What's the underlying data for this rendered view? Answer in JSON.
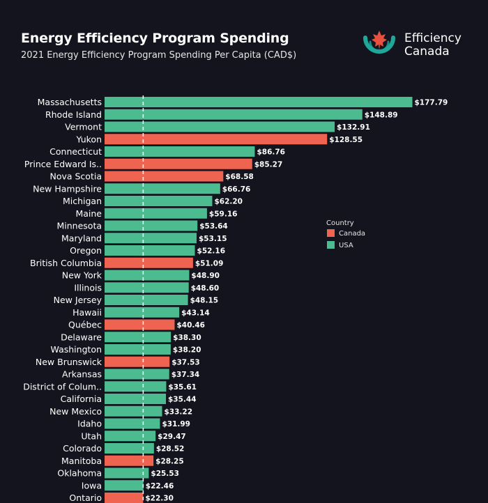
{
  "header": {
    "title": "Energy Efficiency Program Spending",
    "subtitle": "2021 Energy Efficiency Program Spending Per Capita (CAD$)"
  },
  "logo": {
    "line1": "Efficiency",
    "line2": "Canada",
    "colors": {
      "teal": "#1fa89a",
      "red": "#e8513e"
    }
  },
  "colors": {
    "Canada": "#ef6351",
    "USA": "#4cbb8f",
    "background": "#14141f",
    "reference_line": "#ffffff"
  },
  "chart_data": {
    "type": "bar",
    "orientation": "horizontal",
    "title": "Energy Efficiency Program Spending",
    "subtitle": "2021 Energy Efficiency Program Spending Per Capita (CAD$)",
    "xlim": [
      0,
      180
    ],
    "reference_line": 22.3,
    "legend": {
      "title": "Country",
      "placement": "right",
      "entries": [
        "Canada",
        "USA"
      ]
    },
    "value_prefix": "$",
    "categories": [
      "Massachusetts",
      "Rhode Island",
      "Vermont",
      "Yukon",
      "Connecticut",
      "Prince Edward Is..",
      "Nova Scotia",
      "New Hampshire",
      "Michigan",
      "Maine",
      "Minnesota",
      "Maryland",
      "Oregon",
      "British Columbia",
      "New York",
      "Illinois",
      "New Jersey",
      "Hawaii",
      "Québec",
      "Delaware",
      "Washington",
      "New Brunswick",
      "Arkansas",
      "District of Colum..",
      "California",
      "New Mexico",
      "Idaho",
      "Utah",
      "Colorado",
      "Manitoba",
      "Oklahoma",
      "Iowa",
      "Ontario"
    ],
    "values": [
      177.79,
      148.89,
      132.91,
      128.55,
      86.76,
      85.27,
      68.58,
      66.76,
      62.2,
      59.16,
      53.64,
      53.15,
      52.16,
      51.09,
      48.9,
      48.6,
      48.15,
      43.14,
      40.46,
      38.3,
      38.2,
      37.53,
      37.34,
      35.61,
      35.44,
      33.22,
      31.99,
      29.47,
      28.52,
      28.25,
      25.53,
      22.46,
      22.3
    ],
    "value_labels": [
      "$177.79",
      "$148.89",
      "$132.91",
      "$128.55",
      "$86.76",
      "$85.27",
      "$68.58",
      "$66.76",
      "$62.20",
      "$59.16",
      "$53.64",
      "$53.15",
      "$52.16",
      "$51.09",
      "$48.90",
      "$48.60",
      "$48.15",
      "$43.14",
      "$40.46",
      "$38.30",
      "$38.20",
      "$37.53",
      "$37.34",
      "$35.61",
      "$35.44",
      "$33.22",
      "$31.99",
      "$29.47",
      "$28.52",
      "$28.25",
      "$25.53",
      "$22.46",
      "$22.30"
    ],
    "country": [
      "USA",
      "USA",
      "USA",
      "Canada",
      "USA",
      "Canada",
      "Canada",
      "USA",
      "USA",
      "USA",
      "USA",
      "USA",
      "USA",
      "Canada",
      "USA",
      "USA",
      "USA",
      "USA",
      "Canada",
      "USA",
      "USA",
      "Canada",
      "USA",
      "USA",
      "USA",
      "USA",
      "USA",
      "USA",
      "USA",
      "Canada",
      "USA",
      "USA",
      "Canada"
    ]
  }
}
